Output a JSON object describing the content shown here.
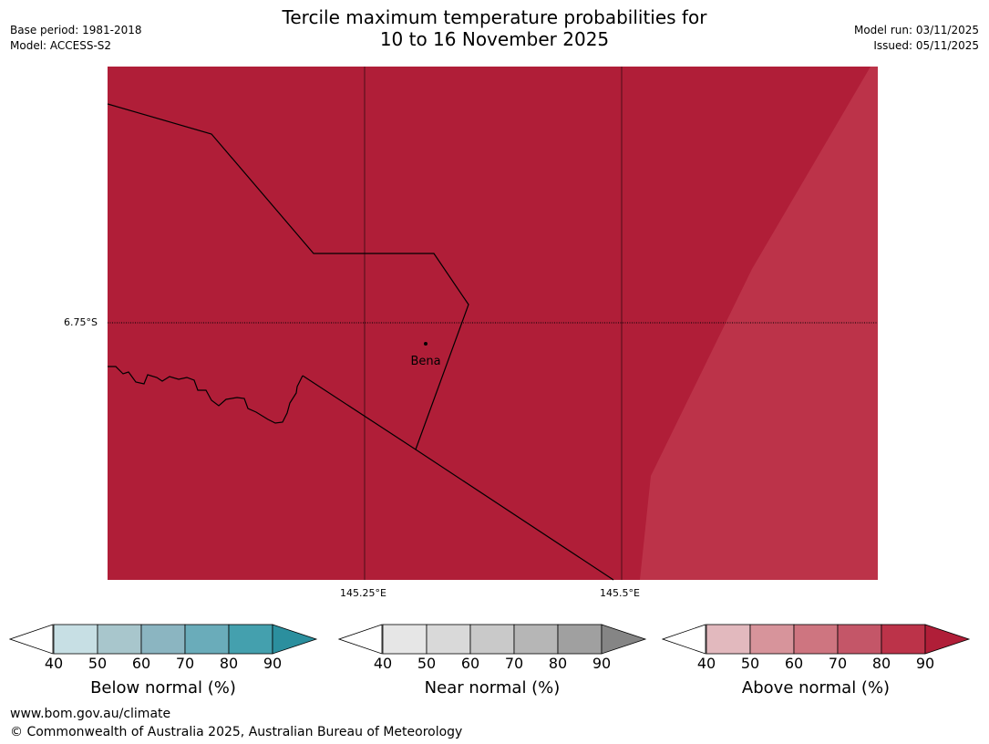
{
  "header": {
    "title_line1": "Tercile maximum temperature probabilities for",
    "title_line2": "10 to 16 November 2025",
    "base_period": "Base period: 1981-2018",
    "model": "Model: ACCESS-S2",
    "model_run": "Model run: 03/11/2025",
    "issued": "Issued: 05/11/2025"
  },
  "map": {
    "lat_label": "6.75°S",
    "lon_labels": [
      "145.25°E",
      "145.5°E"
    ],
    "place_label": "Bena",
    "main_color": "#B01E38",
    "light_color": "#BC3349"
  },
  "legends": [
    {
      "label": "Below normal (%)",
      "ticks": [
        "40",
        "50",
        "60",
        "70",
        "80",
        "90"
      ],
      "colors": [
        "#C7DFE4",
        "#A8C6CC",
        "#8BB5C1",
        "#6AACBA",
        "#44A0AE"
      ],
      "extend_color": "#2B8F9E"
    },
    {
      "label": "Near normal (%)",
      "ticks": [
        "40",
        "50",
        "60",
        "70",
        "80",
        "90"
      ],
      "colors": [
        "#E6E6E6",
        "#D9D9D9",
        "#C9C9C9",
        "#B6B6B6",
        "#A0A0A0"
      ],
      "extend_color": "#858585"
    },
    {
      "label": "Above normal (%)",
      "ticks": [
        "40",
        "50",
        "60",
        "70",
        "80",
        "90"
      ],
      "colors": [
        "#E2B9BE",
        "#D7949B",
        "#CE7580",
        "#C45668",
        "#BC3349"
      ],
      "extend_color": "#B01E38"
    }
  ],
  "footer": {
    "website": "www.bom.gov.au/climate",
    "copyright": "© Commonwealth of Australia 2025, Australian Bureau of Meteorology"
  }
}
